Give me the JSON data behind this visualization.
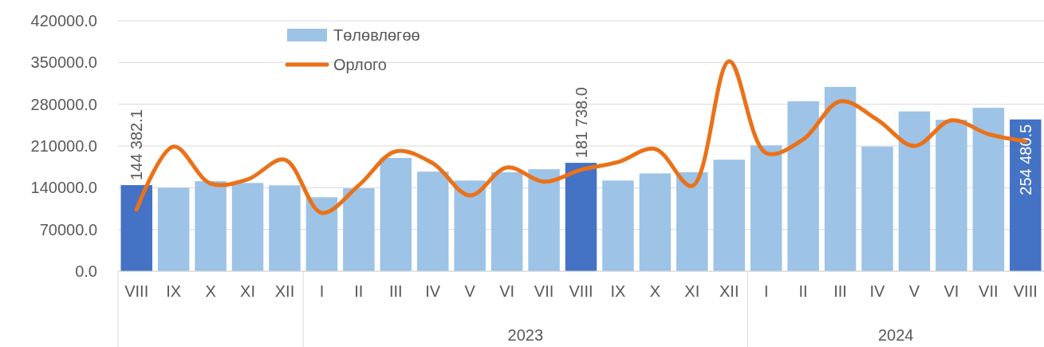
{
  "chart_data": {
    "type": "bar",
    "categories": [
      "VIII",
      "IX",
      "X",
      "XI",
      "XII",
      "I",
      "II",
      "III",
      "IV",
      "V",
      "VI",
      "VII",
      "VIII",
      "IX",
      "X",
      "XI",
      "XII",
      "I",
      "II",
      "III",
      "IV",
      "V",
      "VI",
      "VII",
      "VIII"
    ],
    "series": [
      {
        "name": "Төлөвлөгөө",
        "color": "#9dc3e6",
        "colors": [
          "#4472c4",
          "#9dc3e6",
          "#9dc3e6",
          "#9dc3e6",
          "#9dc3e6",
          "#9dc3e6",
          "#9dc3e6",
          "#9dc3e6",
          "#9dc3e6",
          "#9dc3e6",
          "#9dc3e6",
          "#9dc3e6",
          "#4472c4",
          "#9dc3e6",
          "#9dc3e6",
          "#9dc3e6",
          "#9dc3e6",
          "#9dc3e6",
          "#9dc3e6",
          "#9dc3e6",
          "#9dc3e6",
          "#9dc3e6",
          "#9dc3e6",
          "#9dc3e6",
          "#4472c4"
        ],
        "values": [
          144382.1,
          140000,
          151000,
          148000,
          144000,
          124000,
          139000,
          190000,
          167000,
          152000,
          166000,
          171000,
          181738.0,
          152000,
          164000,
          166000,
          187000,
          211000,
          285000,
          309000,
          209000,
          268000,
          254000,
          274000,
          254480.5
        ],
        "value_labels": [
          "144 382.1",
          null,
          null,
          null,
          null,
          null,
          null,
          null,
          null,
          null,
          null,
          null,
          "181 738.0",
          null,
          null,
          null,
          null,
          null,
          null,
          null,
          null,
          null,
          null,
          null,
          "254 480.5"
        ]
      },
      {
        "name": "Орлого",
        "type": "line",
        "color": "#eb7118",
        "values": [
          103000,
          209000,
          147000,
          154000,
          187000,
          98000,
          144000,
          201000,
          181000,
          127000,
          174000,
          150000,
          170000,
          183000,
          205000,
          143000,
          352000,
          198000,
          221000,
          285000,
          254000,
          210000,
          253000,
          230000,
          218000
        ]
      }
    ],
    "ylim": [
      0,
      420000
    ],
    "yticks": [
      {
        "value": 0,
        "label": "0.0"
      },
      {
        "value": 70000,
        "label": "70000.0"
      },
      {
        "value": 140000,
        "label": "140000.0"
      },
      {
        "value": 210000,
        "label": "210000.0"
      },
      {
        "value": 280000,
        "label": "280000.0"
      },
      {
        "value": 350000,
        "label": "350000.0"
      },
      {
        "value": 420000,
        "label": "420000.0"
      }
    ],
    "grid": "y",
    "legend": "top",
    "marker": "none",
    "annotations": [
      "2023",
      "2024"
    ]
  }
}
